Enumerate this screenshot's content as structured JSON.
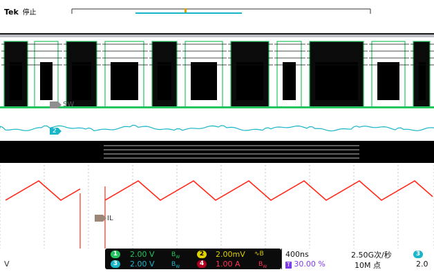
{
  "header": {
    "brand": "Tek",
    "status": "停止"
  },
  "channels": [
    {
      "id": "1",
      "scale": "2.00 V",
      "color": "#22c55e"
    },
    {
      "id": "2",
      "scale": "2.00mV",
      "color": "#e0d000"
    },
    {
      "id": "3",
      "scale": "2.00 V",
      "color": "#19b5c8"
    },
    {
      "id": "4",
      "scale": "1.00 A",
      "color": "#b00020"
    }
  ],
  "bottom_left_letter": "V",
  "timebase": {
    "horizontal": "400ns",
    "sample_rate": "2.50G次/秒",
    "record_length": "10M 点",
    "trigger_position": "30.00 %",
    "trigger_source_badge": "3",
    "trigger_level_partial": "2.0"
  },
  "markers": [
    {
      "id": "sw",
      "label": "SW"
    },
    {
      "id": "ch2",
      "label": "2"
    },
    {
      "id": "il",
      "label": "IL"
    }
  ],
  "colors": {
    "ch1": "#22c55e",
    "ch2": "#e0d000",
    "ch3": "#19b5c8",
    "ch4": "#b00020",
    "inductor_current": "#ff2a1a",
    "math_marker": "#9b8677",
    "trigger_purple": "#7c3aed"
  },
  "icons": [
    "bandwidth-limit-icon",
    "ac-coupling-icon"
  ]
}
